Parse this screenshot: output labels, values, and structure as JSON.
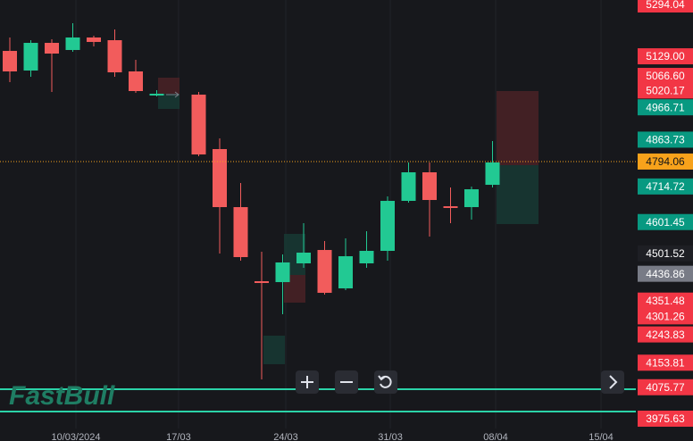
{
  "chart_data": {
    "type": "candlestick",
    "brand": "FastBull",
    "categories": [
      null,
      null,
      null,
      null,
      null,
      null,
      null,
      null,
      null,
      null,
      null,
      null,
      null,
      null,
      null,
      null,
      null,
      null,
      null,
      null,
      null,
      null,
      null,
      null
    ],
    "open": [
      5146.2,
      5083.7,
      5171.8,
      5149.1,
      5188.9,
      5180.3,
      5080.9,
      5004.2,
      null,
      5007.0,
      4833.7,
      4649.0,
      4413.2,
      4410.3,
      4470.0,
      4512.6,
      4390.4,
      4470.0,
      4509.8,
      4668.9,
      4759.8,
      4651.8,
      4649.0,
      4720.0
    ],
    "high": [
      5188.9,
      5180.3,
      5183.2,
      5234.3,
      5194.6,
      5214.4,
      5117.8,
      5021.2,
      null,
      5015.5,
      4867.8,
      4725.7,
      4506.9,
      4498.4,
      4597.8,
      4541.0,
      4549.5,
      4572.3,
      4683.1,
      4791.1,
      4791.1,
      4711.5,
      4714.4,
      4859.3
    ],
    "low": [
      5046.8,
      5063.8,
      5015.5,
      5143.4,
      5160.4,
      5063.8,
      5012.7,
      5001.3,
      null,
      4810.9,
      4501.2,
      4478.5,
      4100.6,
      4308.0,
      4455.8,
      4370.5,
      4384.7,
      4455.8,
      4478.5,
      4663.2,
      4555.2,
      4597.8,
      4609.2,
      4711.5
    ],
    "close": [
      5080.9,
      5171.8,
      5137.7,
      5188.9,
      5174.7,
      5078.0,
      5018.4,
      5009.9,
      null,
      4816.6,
      4649.0,
      4489.9,
      4407.5,
      4472.9,
      4504.1,
      4376.2,
      4492.7,
      4509.8,
      4668.9,
      4759.8,
      4671.7,
      4646.2,
      4705.8,
      4791.1
    ],
    "up_color": "#22c993",
    "down_color": "#f25c5c",
    "ylim": [
      3904.6,
      5308.2
    ],
    "yticks": [
      5294.04,
      {
        "value": 5129,
        "label": "5129.00"
      },
      {
        "value": 5066.6,
        "label": "5066.60"
      },
      5020.17,
      4966.71,
      4863.73,
      4794.06,
      4714.72,
      4601.45,
      4501.52,
      4436.86,
      4351.48,
      4301.26,
      4243.83,
      4153.81,
      4075.77,
      3975.63
    ],
    "ytick_colors": [
      "#f23645",
      "#f23645",
      "#f23645",
      "#f23645",
      "#089981",
      "#089981",
      "#f7a21b",
      "#089981",
      "#089981",
      "#1e1f24",
      "#787b86",
      "#f23645",
      "#f23645",
      "#f23645",
      "#f23645",
      "#f23645",
      "#f23645"
    ],
    "price_line_color": "#f7a21b",
    "xticks": [
      {
        "value": 3.15,
        "label": "10/03/2024"
      },
      {
        "value": 8.04,
        "label": "17/03"
      },
      {
        "value": 13.15,
        "label": "24/03"
      },
      {
        "value": 18.13,
        "label": "31/03"
      },
      {
        "value": 23.15,
        "label": "08/04"
      },
      {
        "value": 28.17,
        "label": "15/04"
      }
    ]
  }
}
